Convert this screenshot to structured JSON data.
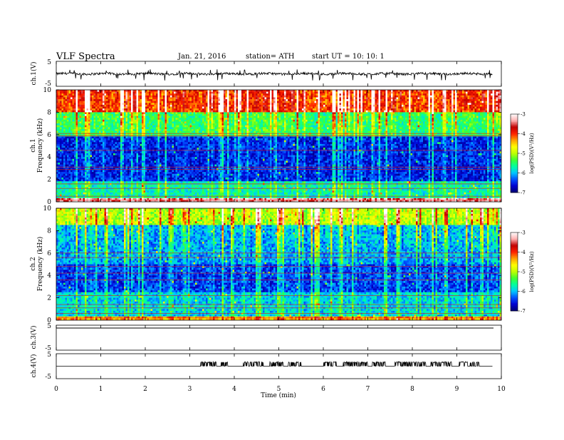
{
  "header": {
    "title": "VLF  Spectra",
    "date": "Jan. 21, 2016",
    "station": "station= ATH",
    "start": "start  UT  =    10: 10: 1"
  },
  "colors": {
    "scale": [
      "#000070",
      "#0000d0",
      "#0050ff",
      "#00c8ff",
      "#00ffa0",
      "#40ff30",
      "#c0ff00",
      "#ffff00",
      "#ffa000",
      "#ff2000",
      "#c00000",
      "#ffb0b0",
      "#ffffff"
    ]
  },
  "chart_data": [
    {
      "type": "line",
      "panel": "ch1-waveform",
      "ylabel": "ch.1(V)",
      "ylim": [
        -5,
        5
      ],
      "yticks": [
        "5",
        "-5"
      ],
      "x_range_min": [
        0,
        9.8
      ],
      "description_level": "noisy signal around 0 V with negative spikes to about -2 V"
    },
    {
      "type": "heatmap",
      "panel": "ch1-spectrogram",
      "ylabel_top": "ch.1",
      "ylabel": "Frequency (kHz)",
      "ylim": [
        0,
        10
      ],
      "yticks": [
        "0",
        "2",
        "4",
        "6",
        "8",
        "10"
      ],
      "colorbar": {
        "label": "log(PSD)(V²/Hz)",
        "range": [
          -7,
          -3
        ],
        "ticks": [
          "-3",
          "-4",
          "-5",
          "-6",
          "-7"
        ]
      },
      "bands_kHz": [
        {
          "from": 0,
          "to": 0.3,
          "logPSD": -3.5
        },
        {
          "from": 0.3,
          "to": 1.8,
          "logPSD": -5.8
        },
        {
          "from": 1.8,
          "to": 5.8,
          "logPSD": -6.6
        },
        {
          "from": 5.8,
          "to": 8.0,
          "logPSD": -5.6
        },
        {
          "from": 8.0,
          "to": 10,
          "logPSD": -4.2
        }
      ]
    },
    {
      "type": "heatmap",
      "panel": "ch2-spectrogram",
      "ylabel_top": "ch.2",
      "ylabel": "Frequency (kHz)",
      "ylim": [
        0,
        10
      ],
      "yticks": [
        "0",
        "2",
        "4",
        "6",
        "8",
        "10"
      ],
      "colorbar": {
        "label": "log(PSD)(V²/Hz)",
        "range": [
          -7,
          -3
        ],
        "ticks": [
          "-3",
          "-4",
          "-5",
          "-6",
          "-7"
        ]
      },
      "bands_kHz": [
        {
          "from": 0,
          "to": 0.4,
          "logPSD": -4.5
        },
        {
          "from": 0.4,
          "to": 2.5,
          "logPSD": -6.0
        },
        {
          "from": 2.5,
          "to": 5.0,
          "logPSD": -6.5
        },
        {
          "from": 5.0,
          "to": 8.5,
          "logPSD": -6.2
        },
        {
          "from": 8.5,
          "to": 10,
          "logPSD": -5.2
        }
      ]
    },
    {
      "type": "line",
      "panel": "ch3-waveform",
      "ylabel": "ch.3(V)",
      "ylim": [
        -5,
        5
      ],
      "yticks": [
        "5",
        "-5"
      ],
      "description_level": "flat at 0 V"
    },
    {
      "type": "line",
      "panel": "ch4-waveform",
      "ylabel": "ch.4(V)",
      "ylim": [
        -5,
        5
      ],
      "yticks": [
        "5",
        "-5"
      ],
      "pulse_windows_min": [
        [
          3.25,
          3.6
        ],
        [
          3.7,
          3.85
        ],
        [
          4.2,
          4.65
        ],
        [
          4.8,
          5.1
        ],
        [
          5.2,
          5.5
        ],
        [
          6.0,
          6.3
        ],
        [
          6.45,
          7.0
        ],
        [
          7.1,
          7.4
        ],
        [
          7.6,
          8.3
        ],
        [
          8.4,
          8.9
        ],
        [
          9.05,
          9.5
        ]
      ],
      "description_level": "near 0 V with intermittent pulses to about 1.5 V"
    }
  ],
  "x_axis": {
    "label": "Time  (min)",
    "range": [
      0,
      10
    ],
    "ticks": [
      "0",
      "1",
      "2",
      "3",
      "4",
      "5",
      "6",
      "7",
      "8",
      "9",
      "10"
    ]
  }
}
